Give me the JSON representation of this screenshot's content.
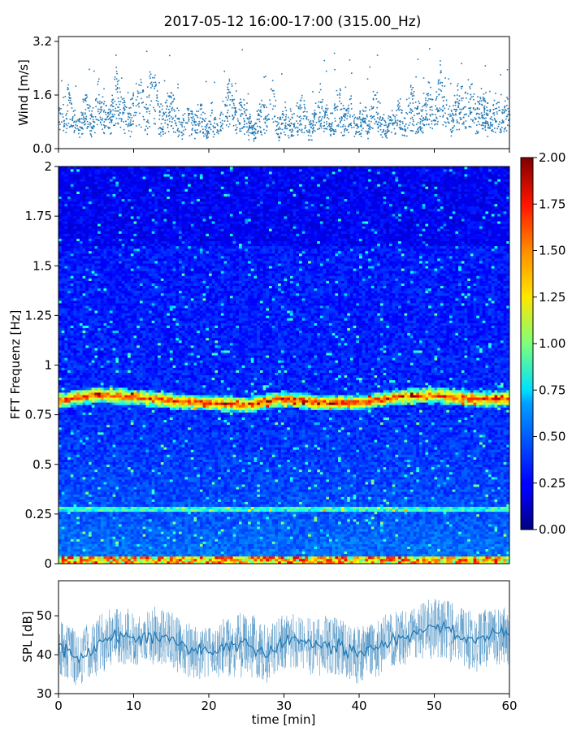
{
  "figure": {
    "title": "2017-05-12 16:00-17:00 (315.00_Hz)"
  },
  "chart_data": [
    {
      "type": "scatter",
      "title": "",
      "xlabel": "",
      "ylabel": "Wind [m/s]",
      "xlim": [
        0,
        60
      ],
      "ylim": [
        0.0,
        3.2
      ],
      "yticks": [
        0.0,
        1.6,
        3.2
      ],
      "ytick_labels": [
        "0.0",
        "1.6",
        "3.2"
      ],
      "xticks": [
        0,
        10,
        20,
        30,
        40,
        50,
        60
      ],
      "marker_color": "#1f77b4",
      "series": [
        {
          "x": [
            0.5,
            1.2,
            2.0,
            2.8,
            3.6,
            4.4,
            5.2,
            6.0,
            6.8,
            7.6,
            8.4,
            9.2,
            10.0,
            10.8,
            11.6,
            12.4,
            13.2,
            14.0,
            14.8,
            15.6,
            16.4,
            17.2,
            18.0,
            18.8,
            19.6,
            20.4,
            21.2,
            22.0,
            22.8,
            23.6,
            24.4,
            25.2,
            26.0,
            26.8,
            27.6,
            28.4,
            29.2,
            30.0,
            30.8,
            31.6,
            32.4,
            33.2,
            34.0,
            34.8,
            35.6,
            36.4,
            37.2,
            38.0,
            38.8,
            39.6,
            40.4,
            41.2,
            42.0,
            42.8,
            43.6,
            44.4,
            45.2,
            46.0,
            46.8,
            47.6,
            48.4,
            49.2,
            50.0,
            50.8,
            51.6,
            52.4,
            53.2,
            54.0,
            54.8,
            55.6,
            56.4,
            57.2,
            58.0,
            58.8,
            59.6
          ],
          "y": [
            0.9,
            1.5,
            0.8,
            0.6,
            1.3,
            0.7,
            1.6,
            1.1,
            0.9,
            1.9,
            1.2,
            0.8,
            1.3,
            1.7,
            1.0,
            2.2,
            1.1,
            0.8,
            1.4,
            0.9,
            0.6,
            1.0,
            0.7,
            1.2,
            0.5,
            0.9,
            0.6,
            1.1,
            1.7,
            0.8,
            1.2,
            0.7,
            0.5,
            1.1,
            0.9,
            1.6,
            0.6,
            1.0,
            0.7,
            0.9,
            1.2,
            0.5,
            0.8,
            1.4,
            0.9,
            0.7,
            1.5,
            0.8,
            1.1,
            0.6,
            1.0,
            0.7,
            1.3,
            0.9,
            0.5,
            0.8,
            1.1,
            0.7,
            1.4,
            1.2,
            0.8,
            1.6,
            1.0,
            1.9,
            1.1,
            0.9,
            1.5,
            1.3,
            1.7,
            1.0,
            1.4,
            0.8,
            1.2,
            0.9,
            1.1
          ]
        }
      ]
    },
    {
      "type": "heatmap",
      "title": "",
      "xlabel": "",
      "ylabel": "FFT Frequenz [Hz]",
      "xlim": [
        0,
        60
      ],
      "ylim": [
        0,
        2
      ],
      "yticks": [
        0,
        0.25,
        0.5,
        0.75,
        1,
        1.25,
        1.5,
        1.75,
        2
      ],
      "ytick_labels": [
        "0",
        "0.25",
        "0.5",
        "0.75",
        "1",
        "1.25",
        "1.5",
        "1.75",
        "2"
      ],
      "colormap": "jet",
      "colorbar": {
        "range": [
          0.0,
          2.0
        ],
        "ticks": [
          0.0,
          0.25,
          0.5,
          0.75,
          1.0,
          1.25,
          1.5,
          1.75,
          2.0
        ],
        "tick_labels": [
          "0.00",
          "0.25",
          "0.50",
          "0.75",
          "1.00",
          "1.25",
          "1.50",
          "1.75",
          "2.00"
        ]
      },
      "dominant_band": {
        "time_min": [
          0,
          5,
          10,
          15,
          20,
          25,
          30,
          35,
          40,
          45,
          50,
          55,
          60
        ],
        "frequency_hz": [
          0.82,
          0.85,
          0.84,
          0.82,
          0.81,
          0.8,
          0.83,
          0.81,
          0.81,
          0.84,
          0.85,
          0.83,
          0.83
        ]
      },
      "secondary_bands_hz": [
        0.27,
        0.02
      ]
    },
    {
      "type": "line",
      "title": "",
      "xlabel": "time [min]",
      "ylabel": "SPL [dB]",
      "xlim": [
        0,
        60
      ],
      "ylim": [
        30,
        59
      ],
      "yticks": [
        30,
        40,
        50
      ],
      "ytick_labels": [
        "30",
        "40",
        "50"
      ],
      "xticks": [
        0,
        10,
        20,
        30,
        40,
        50,
        60
      ],
      "xtick_labels": [
        "0",
        "10",
        "20",
        "30",
        "40",
        "50",
        "60"
      ],
      "line_color": "#1f77b4",
      "series": [
        {
          "x": [
            0,
            2.5,
            5,
            7.5,
            10,
            12.5,
            15,
            17.5,
            20,
            22.5,
            25,
            27.5,
            30,
            32.5,
            35,
            37.5,
            40,
            42.5,
            45,
            47.5,
            50,
            52.5,
            55,
            57.5,
            60
          ],
          "y": [
            42,
            39,
            42,
            45,
            44,
            45,
            44,
            41,
            41,
            42,
            43,
            40,
            44,
            43,
            42,
            42,
            40,
            42,
            44,
            46,
            47,
            46,
            43,
            45,
            45
          ],
          "y_low": [
            35,
            33,
            35,
            38,
            37,
            38,
            37,
            34,
            34,
            35,
            35,
            33,
            37,
            36,
            34,
            34,
            33,
            35,
            37,
            39,
            40,
            39,
            35,
            38,
            38
          ],
          "y_high": [
            50,
            47,
            50,
            53,
            52,
            53,
            52,
            49,
            48,
            50,
            53,
            48,
            52,
            51,
            50,
            50,
            48,
            50,
            52,
            54,
            56,
            55,
            51,
            53,
            53
          ]
        }
      ]
    }
  ]
}
